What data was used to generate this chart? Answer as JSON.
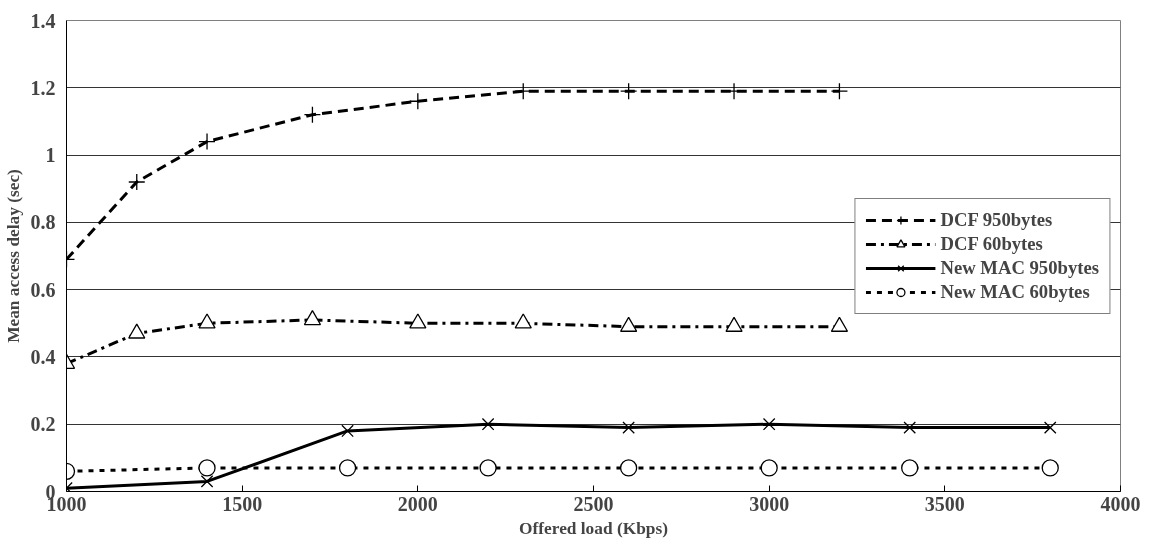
{
  "chart_data": {
    "type": "line",
    "xlabel": "Offered load (Kbps)",
    "ylabel": "Mean access delay (sec)",
    "xlim": [
      1000,
      4000
    ],
    "xticks": [
      1000,
      1500,
      2000,
      2500,
      3000,
      3500,
      4000
    ],
    "ylim": [
      0,
      1.4
    ],
    "yticks": [
      0,
      0.2,
      0.4,
      0.6,
      0.8,
      1,
      1.2,
      1.4
    ],
    "grid": "y",
    "legend": "right",
    "series": [
      {
        "name": "DCF 950bytes",
        "color": "#000000",
        "marker": "cross",
        "line_style": "dashed",
        "x": [
          1000,
          1200,
          1400,
          1700,
          2000,
          2300,
          2600,
          2900,
          3200
        ],
        "values": [
          0.69,
          0.92,
          1.04,
          1.12,
          1.16,
          1.19,
          1.19,
          1.19,
          1.19
        ]
      },
      {
        "name": "DCF 60bytes",
        "color": "#000000",
        "marker": "triangle",
        "line_style": "dashdot",
        "x": [
          1000,
          1200,
          1400,
          1700,
          2000,
          2300,
          2600,
          2900,
          3200
        ],
        "values": [
          0.38,
          0.47,
          0.5,
          0.51,
          0.5,
          0.5,
          0.49,
          0.49,
          0.49
        ]
      },
      {
        "name": "New MAC 950bytes",
        "color": "#000000",
        "marker": "x",
        "line_style": "solid",
        "x": [
          1000,
          1400,
          1800,
          2200,
          2600,
          3000,
          3400,
          3800
        ],
        "values": [
          0.01,
          0.03,
          0.18,
          0.2,
          0.19,
          0.2,
          0.19,
          0.19
        ]
      },
      {
        "name": "New MAC 60bytes",
        "color": "#000000",
        "marker": "circle",
        "line_style": "dotted",
        "x": [
          1000,
          1400,
          1800,
          2200,
          2600,
          3000,
          3400,
          3800
        ],
        "values": [
          0.06,
          0.07,
          0.07,
          0.07,
          0.07,
          0.07,
          0.07,
          0.07
        ]
      }
    ]
  }
}
